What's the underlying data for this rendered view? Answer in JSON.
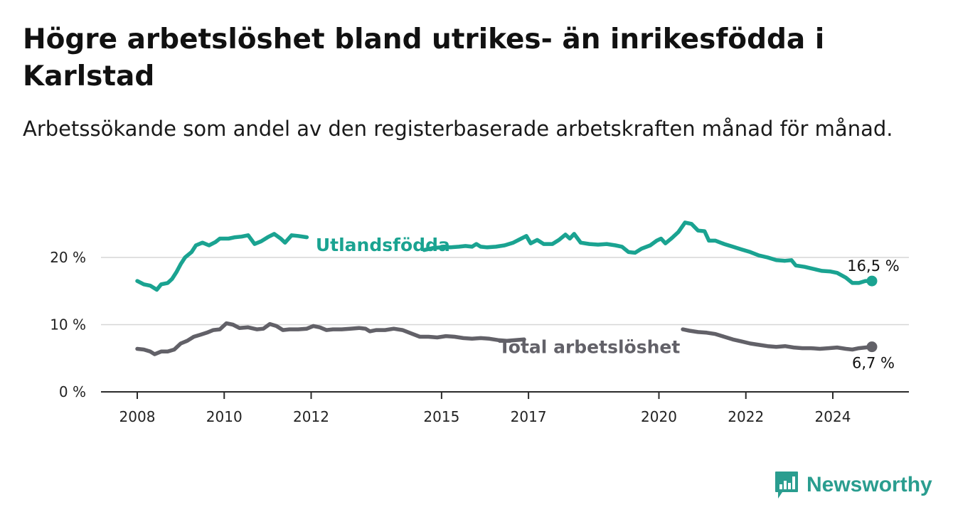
{
  "header": {
    "title": "Högre arbetslöshet bland utrikes- än inrikesfödda i Karlstad",
    "subtitle": "Arbetssökande som andel av den registerbaserade arbetskraften månad för månad."
  },
  "brand": {
    "name": "Newsworthy",
    "icon": "bar-chart-icon",
    "color": "#2a9d8f"
  },
  "chart_data": {
    "type": "line",
    "title": "Högre arbetslöshet bland utrikes- än inrikesfödda i Karlstad",
    "subtitle": "Arbetssökande som andel av den registerbaserade arbetskraften månad för månad.",
    "xlabel": "",
    "ylabel": "",
    "xlim": [
      2008,
      2025.1
    ],
    "ylim": [
      0,
      25
    ],
    "x_ticks": [
      "2008",
      "2010",
      "2012",
      "2015",
      "2017",
      "2020",
      "2022",
      "2024"
    ],
    "y_ticks": [
      "0 %",
      "10 %",
      "20 %"
    ],
    "grid": true,
    "legend": "inline labels",
    "series": [
      {
        "name": "Utlandsfödda",
        "color": "#1aa391",
        "end_label": "16,5 %",
        "points": [
          [
            2008.0,
            16.5
          ],
          [
            2008.15,
            16.0
          ],
          [
            2008.3,
            15.8
          ],
          [
            2008.45,
            15.2
          ],
          [
            2008.55,
            16.0
          ],
          [
            2008.7,
            16.2
          ],
          [
            2008.8,
            16.8
          ],
          [
            2008.9,
            17.8
          ],
          [
            2009.0,
            19.0
          ],
          [
            2009.1,
            20.0
          ],
          [
            2009.25,
            20.8
          ],
          [
            2009.35,
            21.8
          ],
          [
            2009.5,
            22.2
          ],
          [
            2009.65,
            21.8
          ],
          [
            2009.8,
            22.3
          ],
          [
            2009.9,
            22.8
          ],
          [
            2010.1,
            22.8
          ],
          [
            2010.25,
            23.0
          ],
          [
            2010.4,
            23.1
          ],
          [
            2010.55,
            23.3
          ],
          [
            2010.7,
            22.0
          ],
          [
            2010.85,
            22.4
          ],
          [
            2011.0,
            23.0
          ],
          [
            2011.15,
            23.5
          ],
          [
            2011.3,
            22.8
          ],
          [
            2011.4,
            22.2
          ],
          [
            2011.55,
            23.3
          ],
          [
            2011.7,
            23.2
          ],
          [
            2011.9,
            23.0
          ],
          [
            2014.6,
            21.1
          ],
          [
            2014.8,
            21.4
          ],
          [
            2015.0,
            21.5
          ],
          [
            2015.2,
            21.5
          ],
          [
            2015.4,
            21.6
          ],
          [
            2015.55,
            21.7
          ],
          [
            2015.7,
            21.6
          ],
          [
            2015.8,
            22.0
          ],
          [
            2015.9,
            21.6
          ],
          [
            2016.05,
            21.5
          ],
          [
            2016.25,
            21.6
          ],
          [
            2016.45,
            21.8
          ],
          [
            2016.65,
            22.2
          ],
          [
            2016.8,
            22.7
          ],
          [
            2016.95,
            23.2
          ],
          [
            2017.05,
            22.1
          ],
          [
            2017.2,
            22.6
          ],
          [
            2017.35,
            22.0
          ],
          [
            2017.55,
            22.0
          ],
          [
            2017.7,
            22.6
          ],
          [
            2017.85,
            23.4
          ],
          [
            2017.95,
            22.8
          ],
          [
            2018.05,
            23.5
          ],
          [
            2018.2,
            22.2
          ],
          [
            2018.4,
            22.0
          ],
          [
            2018.6,
            21.9
          ],
          [
            2018.8,
            22.0
          ],
          [
            2019.0,
            21.8
          ],
          [
            2019.15,
            21.6
          ],
          [
            2019.3,
            20.8
          ],
          [
            2019.45,
            20.7
          ],
          [
            2019.6,
            21.3
          ],
          [
            2019.8,
            21.8
          ],
          [
            2019.95,
            22.5
          ],
          [
            2020.05,
            22.8
          ],
          [
            2020.15,
            22.1
          ],
          [
            2020.3,
            22.9
          ],
          [
            2020.45,
            23.8
          ],
          [
            2020.6,
            25.2
          ],
          [
            2020.75,
            25.0
          ],
          [
            2020.9,
            24.0
          ],
          [
            2021.05,
            23.9
          ],
          [
            2021.15,
            22.5
          ],
          [
            2021.3,
            22.5
          ],
          [
            2021.5,
            22.0
          ],
          [
            2021.7,
            21.6
          ],
          [
            2021.9,
            21.2
          ],
          [
            2022.1,
            20.8
          ],
          [
            2022.3,
            20.3
          ],
          [
            2022.5,
            20.0
          ],
          [
            2022.7,
            19.6
          ],
          [
            2022.9,
            19.5
          ],
          [
            2023.05,
            19.6
          ],
          [
            2023.15,
            18.8
          ],
          [
            2023.35,
            18.6
          ],
          [
            2023.55,
            18.3
          ],
          [
            2023.75,
            18.0
          ],
          [
            2023.95,
            17.9
          ],
          [
            2024.1,
            17.7
          ],
          [
            2024.3,
            17.0
          ],
          [
            2024.45,
            16.2
          ],
          [
            2024.6,
            16.2
          ],
          [
            2024.75,
            16.5
          ],
          [
            2024.9,
            16.5
          ]
        ]
      },
      {
        "name": "Total arbetslöshet",
        "color": "#626168",
        "end_label": "6,7 %",
        "points": [
          [
            2008.0,
            6.4
          ],
          [
            2008.15,
            6.3
          ],
          [
            2008.3,
            6.0
          ],
          [
            2008.4,
            5.6
          ],
          [
            2008.55,
            6.0
          ],
          [
            2008.7,
            6.0
          ],
          [
            2008.85,
            6.3
          ],
          [
            2009.0,
            7.2
          ],
          [
            2009.15,
            7.6
          ],
          [
            2009.3,
            8.2
          ],
          [
            2009.45,
            8.5
          ],
          [
            2009.6,
            8.8
          ],
          [
            2009.75,
            9.2
          ],
          [
            2009.9,
            9.3
          ],
          [
            2010.05,
            10.2
          ],
          [
            2010.2,
            10.0
          ],
          [
            2010.35,
            9.5
          ],
          [
            2010.55,
            9.6
          ],
          [
            2010.75,
            9.3
          ],
          [
            2010.9,
            9.4
          ],
          [
            2011.05,
            10.1
          ],
          [
            2011.2,
            9.8
          ],
          [
            2011.35,
            9.2
          ],
          [
            2011.5,
            9.3
          ],
          [
            2011.7,
            9.3
          ],
          [
            2011.9,
            9.4
          ],
          [
            2012.05,
            9.8
          ],
          [
            2012.2,
            9.6
          ],
          [
            2012.35,
            9.2
          ],
          [
            2012.5,
            9.3
          ],
          [
            2012.7,
            9.3
          ],
          [
            2012.9,
            9.4
          ],
          [
            2013.1,
            9.5
          ],
          [
            2013.25,
            9.4
          ],
          [
            2013.35,
            9.0
          ],
          [
            2013.5,
            9.2
          ],
          [
            2013.7,
            9.2
          ],
          [
            2013.9,
            9.4
          ],
          [
            2014.1,
            9.2
          ],
          [
            2014.3,
            8.7
          ],
          [
            2014.5,
            8.2
          ],
          [
            2014.7,
            8.2
          ],
          [
            2014.9,
            8.1
          ],
          [
            2015.1,
            8.3
          ],
          [
            2015.3,
            8.2
          ],
          [
            2015.5,
            8.0
          ],
          [
            2015.7,
            7.9
          ],
          [
            2015.9,
            8.0
          ],
          [
            2016.1,
            7.9
          ],
          [
            2016.3,
            7.7
          ],
          [
            2016.5,
            7.6
          ],
          [
            2016.7,
            7.7
          ],
          [
            2016.9,
            7.8
          ],
          [
            2020.55,
            9.3
          ],
          [
            2020.7,
            9.1
          ],
          [
            2020.9,
            8.9
          ],
          [
            2021.1,
            8.8
          ],
          [
            2021.3,
            8.6
          ],
          [
            2021.5,
            8.2
          ],
          [
            2021.7,
            7.8
          ],
          [
            2021.9,
            7.5
          ],
          [
            2022.1,
            7.2
          ],
          [
            2022.3,
            7.0
          ],
          [
            2022.5,
            6.8
          ],
          [
            2022.7,
            6.7
          ],
          [
            2022.9,
            6.8
          ],
          [
            2023.1,
            6.6
          ],
          [
            2023.3,
            6.5
          ],
          [
            2023.5,
            6.5
          ],
          [
            2023.7,
            6.4
          ],
          [
            2023.9,
            6.5
          ],
          [
            2024.1,
            6.6
          ],
          [
            2024.3,
            6.4
          ],
          [
            2024.45,
            6.3
          ],
          [
            2024.6,
            6.5
          ],
          [
            2024.75,
            6.6
          ],
          [
            2024.9,
            6.7
          ]
        ]
      }
    ]
  }
}
